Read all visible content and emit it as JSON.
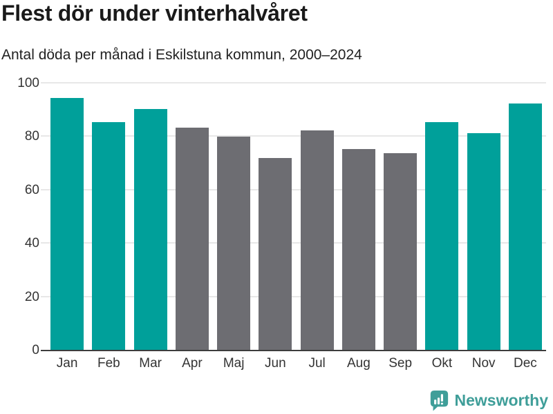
{
  "title": "Flest dör under vinterhalvåret",
  "subtitle": "Antal döda per månad i Eskilstuna kommun, 2000–2024",
  "chart_data": {
    "type": "bar",
    "categories": [
      "Jan",
      "Feb",
      "Mar",
      "Apr",
      "Maj",
      "Jun",
      "Jul",
      "Aug",
      "Sep",
      "Okt",
      "Nov",
      "Dec"
    ],
    "values": [
      94.5,
      85.5,
      90.5,
      83.5,
      80,
      72,
      82.5,
      75.5,
      74,
      85.5,
      81.5,
      92.5
    ],
    "title": "Flest dör under vinterhalvåret",
    "xlabel": "",
    "ylabel": "",
    "ylim": [
      0,
      100
    ],
    "yticks": [
      0,
      20,
      40,
      60,
      80,
      100
    ],
    "grid": true,
    "legend": false,
    "highlight_indexes": [
      0,
      1,
      2,
      9,
      10,
      11
    ],
    "highlight_color": "#00a09a",
    "default_color": "#6d6d72"
  },
  "colors": {
    "background": "#ffffff",
    "title_text": "#1a1a1a",
    "subtitle_text": "#222222",
    "axis_label_text": "#333333",
    "gridline": "#e7e7e7",
    "axis_line": "#3d3d3d",
    "brand_teal": "#3f9e99"
  },
  "footer": {
    "brand": "Newsworthy",
    "logo_icon": "bar-chart-speech-bubble-icon"
  }
}
